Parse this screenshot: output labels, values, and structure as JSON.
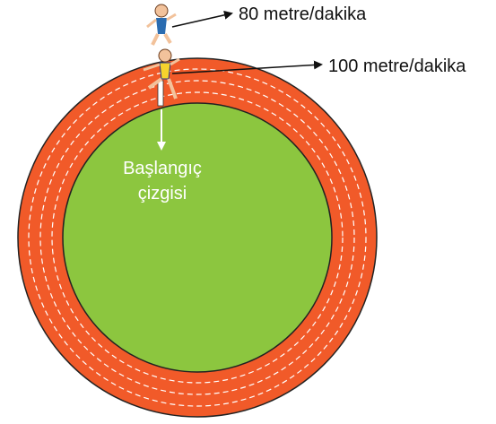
{
  "annotations": [
    {
      "text": "80 metre/dakika"
    },
    {
      "text": "100 metre/dakika"
    }
  ],
  "start_line": {
    "lines": [
      "Başlangıç",
      "çizgisi"
    ]
  }
}
